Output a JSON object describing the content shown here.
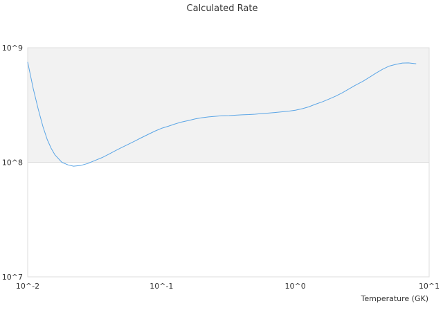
{
  "chart_data": {
    "type": "line",
    "title": "Calculated Rate",
    "xlabel": "Temperature (GK)",
    "ylabel": "",
    "x_scale": "log",
    "y_scale": "log",
    "xlim": [
      0.01,
      10
    ],
    "ylim": [
      10000000,
      1000000000
    ],
    "x_ticks": [
      {
        "value": 0.01,
        "label": "10^-2"
      },
      {
        "value": 0.1,
        "label": "10^-1"
      },
      {
        "value": 1,
        "label": "10^0"
      },
      {
        "value": 10,
        "label": "10^1"
      }
    ],
    "y_ticks": [
      {
        "value": 10000000,
        "label": "10^7"
      },
      {
        "value": 100000000,
        "label": "10^8"
      },
      {
        "value": 1000000000,
        "label": "10^9"
      }
    ],
    "shaded_band": {
      "y_from": 100000000,
      "y_to": 1000000000,
      "color": "#f2f2f2"
    },
    "grid": true,
    "legend": "none",
    "series": [
      {
        "color": "#5aa5e6",
        "points": [
          [
            0.01,
            750000000.0
          ],
          [
            0.011,
            440000000.0
          ],
          [
            0.012,
            290000000.0
          ],
          [
            0.013,
            205000000.0
          ],
          [
            0.014,
            158000000.0
          ],
          [
            0.015,
            132000000.0
          ],
          [
            0.016,
            116000000.0
          ],
          [
            0.018,
            100000000.0
          ],
          [
            0.02,
            95000000.0
          ],
          [
            0.022,
            92500000.0
          ],
          [
            0.025,
            94000000.0
          ],
          [
            0.028,
            97500000.0
          ],
          [
            0.032,
            104000000.0
          ],
          [
            0.036,
            110000000.0
          ],
          [
            0.04,
            117000000.0
          ],
          [
            0.045,
            126000000.0
          ],
          [
            0.05,
            134000000.0
          ],
          [
            0.056,
            143000000.0
          ],
          [
            0.063,
            153000000.0
          ],
          [
            0.07,
            163000000.0
          ],
          [
            0.08,
            176000000.0
          ],
          [
            0.09,
            188000000.0
          ],
          [
            0.1,
            198000000.0
          ],
          [
            0.113,
            207000000.0
          ],
          [
            0.126,
            216000000.0
          ],
          [
            0.14,
            224000000.0
          ],
          [
            0.16,
            232000000.0
          ],
          [
            0.18,
            240000000.0
          ],
          [
            0.2,
            245000000.0
          ],
          [
            0.225,
            249000000.0
          ],
          [
            0.25,
            252000000.0
          ],
          [
            0.28,
            255000000.0
          ],
          [
            0.32,
            256000000.0
          ],
          [
            0.36,
            258000000.0
          ],
          [
            0.4,
            260000000.0
          ],
          [
            0.45,
            261000000.0
          ],
          [
            0.5,
            263000000.0
          ],
          [
            0.56,
            266000000.0
          ],
          [
            0.63,
            269000000.0
          ],
          [
            0.7,
            272000000.0
          ],
          [
            0.8,
            276000000.0
          ],
          [
            0.9,
            280000000.0
          ],
          [
            1.0,
            285000000.0
          ],
          [
            1.13,
            294000000.0
          ],
          [
            1.26,
            305000000.0
          ],
          [
            1.4,
            320000000.0
          ],
          [
            1.6,
            338000000.0
          ],
          [
            1.8,
            358000000.0
          ],
          [
            2.0,
            378000000.0
          ],
          [
            2.25,
            405000000.0
          ],
          [
            2.5,
            435000000.0
          ],
          [
            2.8,
            470000000.0
          ],
          [
            3.2,
            510000000.0
          ],
          [
            3.6,
            555000000.0
          ],
          [
            4.0,
            600000000.0
          ],
          [
            4.5,
            650000000.0
          ],
          [
            5.0,
            690000000.0
          ],
          [
            5.6,
            715000000.0
          ],
          [
            6.3,
            735000000.0
          ],
          [
            7.0,
            738000000.0
          ],
          [
            8.0,
            725000000.0
          ]
        ]
      }
    ]
  }
}
